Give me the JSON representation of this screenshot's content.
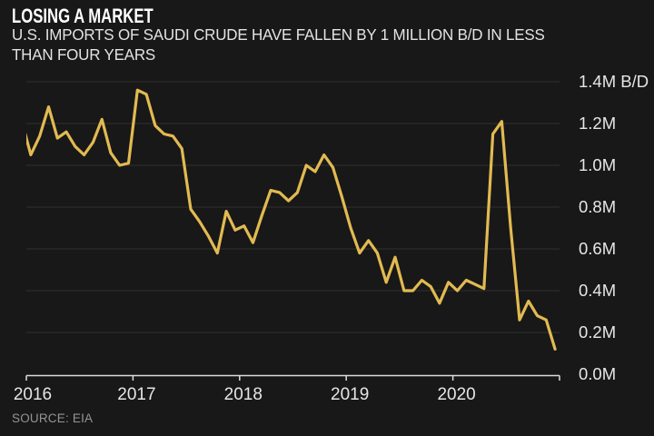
{
  "header": {
    "title": "LOSING A MARKET",
    "subtitle_line1": "U.S. IMPORTS OF SAUDI CRUDE HAVE FALLEN BY 1 MILLION B/D IN LESS",
    "subtitle_line2": "THAN FOUR YEARS"
  },
  "source_label": "SOURCE: EIA",
  "colors": {
    "background": "#181818",
    "line": "#e2ba51",
    "grid": "#303030",
    "axis": "#dcdcdc",
    "title": "#ffffff",
    "subtitle": "#e3e3e3",
    "tick_label": "#e6e6e6",
    "source": "#949494"
  },
  "chart_data": {
    "type": "line",
    "title": "LOSING A MARKET",
    "subtitle": "U.S. IMPORTS OF SAUDI CRUDE HAVE FALLEN BY 1 MILLION B/D IN LESS THAN FOUR YEARS",
    "unit": "million barrels per day (M B/D)",
    "x_frequency": "monthly",
    "x_start": "2015-12",
    "x_end": "2020-12",
    "x_tick_labels": [
      "2016",
      "2017",
      "2018",
      "2019",
      "2020"
    ],
    "y_tick_labels": [
      "1.4M B/D",
      "1.2M",
      "1.0M",
      "0.8M",
      "0.6M",
      "0.4M",
      "0.2M",
      "0.0M"
    ],
    "y_tick_values": [
      1.4,
      1.2,
      1.0,
      0.8,
      0.6,
      0.4,
      0.2,
      0.0
    ],
    "ylim": [
      0,
      1.4
    ],
    "grid": "horizontal-only",
    "y_axis_side": "right",
    "legend": "none",
    "series": [
      {
        "name": "U.S. imports of Saudi crude",
        "color": "#e2ba51",
        "values": [
          1.21,
          1.05,
          1.14,
          1.28,
          1.13,
          1.16,
          1.09,
          1.05,
          1.11,
          1.22,
          1.06,
          1.0,
          1.01,
          1.36,
          1.34,
          1.19,
          1.15,
          1.14,
          1.08,
          0.79,
          0.73,
          0.66,
          0.58,
          0.78,
          0.69,
          0.71,
          0.63,
          0.76,
          0.88,
          0.87,
          0.83,
          0.87,
          1.0,
          0.97,
          1.05,
          0.99,
          0.85,
          0.7,
          0.58,
          0.64,
          0.58,
          0.44,
          0.56,
          0.4,
          0.4,
          0.45,
          0.42,
          0.34,
          0.44,
          0.4,
          0.45,
          0.43,
          0.41,
          1.15,
          1.21,
          0.7,
          0.26,
          0.35,
          0.28,
          0.26,
          0.12
        ]
      }
    ]
  }
}
